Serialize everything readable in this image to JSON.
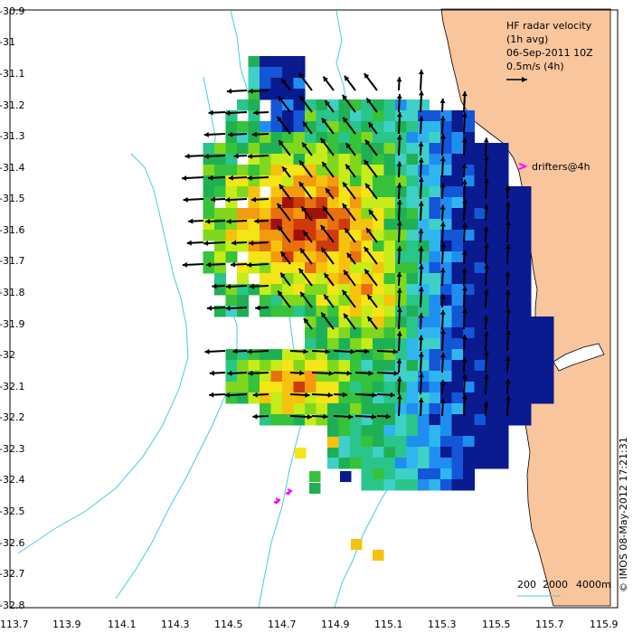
{
  "title": {
    "line1": "HF radar velocity",
    "line2": "(1h avg)",
    "line3": "06-Sep-2011 10Z",
    "scale_label": "0.5m/s (4h)"
  },
  "drifters_label": "drifters@4h",
  "credit": "© IMOS 08-May-2012 17:21:31",
  "bathymetry_legend": {
    "labels": [
      "200",
      "2000",
      "4000m"
    ]
  },
  "axes": {
    "x_ticks": [
      "113.7",
      "113.9",
      "114.1",
      "114.3",
      "114.5",
      "114.7",
      "114.9",
      "115.1",
      "115.3",
      "115.5",
      "115.7",
      "115.9"
    ],
    "y_ticks": [
      "-30.9",
      "-31",
      "-31.1",
      "-31.2",
      "-31.3",
      "-31.4",
      "-31.5",
      "-31.6",
      "-31.7",
      "-31.8",
      "-31.9",
      "-32",
      "-32.1",
      "-32.2",
      "-32.3",
      "-32.4",
      "-32.5",
      "-32.6",
      "-32.7",
      "-32.8"
    ],
    "xlim": [
      113.7,
      115.9
    ],
    "ylim": [
      -32.8,
      -30.9
    ]
  },
  "colors": {
    "land": "#f8c59d",
    "bathymetry": "#40d0e0",
    "drifter": "#ff00ff",
    "arrow": "#000000"
  }
}
